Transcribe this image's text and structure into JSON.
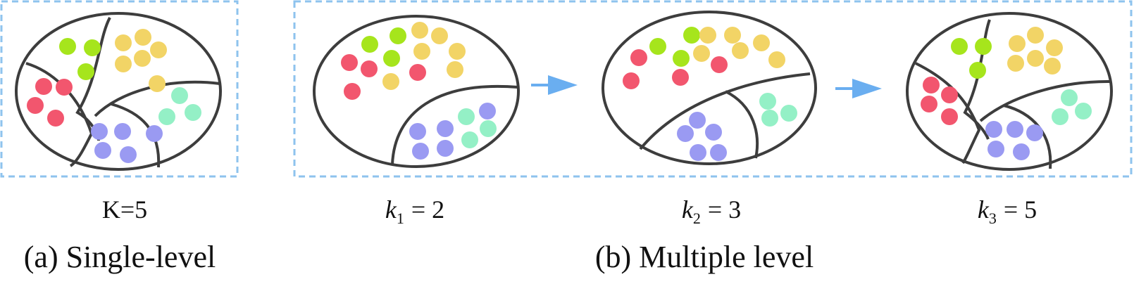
{
  "colors": {
    "outline": "#3d3d3d",
    "frame": "#8ec3ee",
    "arrow": "#6aaef0",
    "red": "#f2566e",
    "green": "#a6e51c",
    "yellow": "#f2d466",
    "cyan": "#94f0c6",
    "purple": "#9a9af2"
  },
  "panels": [
    {
      "label": "K=5"
    },
    {
      "label_var": "k",
      "label_sub": "1",
      "label_value": "= 2"
    },
    {
      "label_var": "k",
      "label_sub": "2",
      "label_value": "= 3"
    },
    {
      "label_var": "k",
      "label_sub": "3",
      "label_value": "= 5"
    }
  ],
  "captions": {
    "single": "(a) Single-level",
    "multiple": "(b) Multiple level"
  }
}
